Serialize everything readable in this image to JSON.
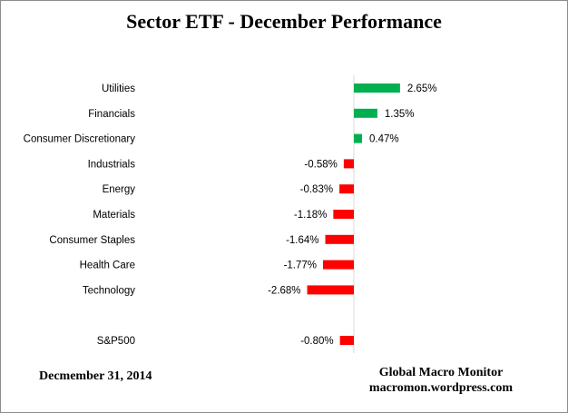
{
  "chart_data": {
    "type": "bar",
    "orientation": "horizontal",
    "title": "Sector ETF - December Performance",
    "categories": [
      "Utilities",
      "Financials",
      "Consumer Discretionary",
      "Industrials",
      "Energy",
      "Materials",
      "Consumer Staples",
      "Health Care",
      "Technology",
      "S&P500"
    ],
    "values": [
      2.65,
      1.35,
      0.47,
      -0.58,
      -0.83,
      -1.18,
      -1.64,
      -1.77,
      -2.68,
      -0.8
    ],
    "value_labels": [
      "2.65%",
      "1.35%",
      "0.47%",
      "-0.58%",
      "-0.83%",
      "-1.18%",
      "-1.64%",
      "-1.77%",
      "-2.68%",
      "-0.80%"
    ],
    "unit": "%",
    "gap_before_last": true,
    "colors": {
      "positive": "#00b050",
      "negative": "#ff0000"
    },
    "grid": false,
    "legend": "none"
  },
  "footer": {
    "date": "Decmember 31, 2014",
    "source_name": "Global Macro Monitor",
    "source_url": "macromon.wordpress.com"
  }
}
